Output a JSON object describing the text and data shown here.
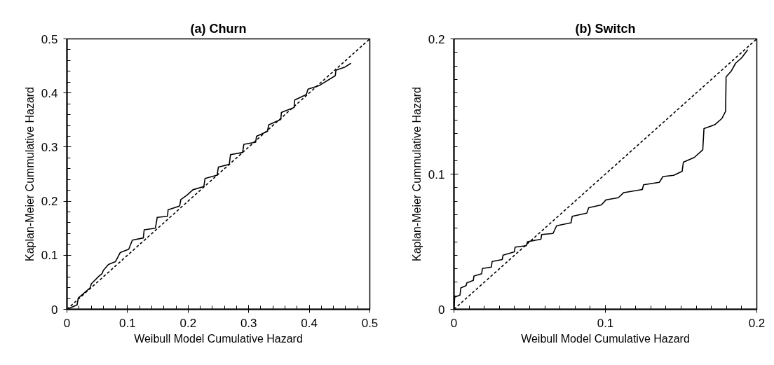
{
  "chart_data": [
    {
      "type": "line",
      "title": "(a) Churn",
      "xlabel": "Weibull Model Cumulative Hazard",
      "ylabel": "Kaplan-Meier Cummulative Hazard",
      "xlim": [
        0,
        0.5
      ],
      "ylim": [
        0,
        0.5
      ],
      "xticks": [
        0,
        {
          "value": 0.02,
          "label": null
        },
        {
          "value": 0.04,
          "label": null
        },
        {
          "value": 0.06,
          "label": null
        },
        {
          "value": 0.08,
          "label": null
        },
        0.1,
        {
          "value": 0.12,
          "label": null
        },
        {
          "value": 0.14,
          "label": null
        },
        {
          "value": 0.16,
          "label": null
        },
        {
          "value": 0.18,
          "label": null
        },
        0.2,
        {
          "value": 0.22,
          "label": null
        },
        {
          "value": 0.24,
          "label": null
        },
        {
          "value": 0.26,
          "label": null
        },
        {
          "value": 0.28,
          "label": null
        },
        0.3,
        {
          "value": 0.32,
          "label": null
        },
        {
          "value": 0.34,
          "label": null
        },
        {
          "value": 0.36,
          "label": null
        },
        {
          "value": 0.38,
          "label": null
        },
        0.4,
        {
          "value": 0.42,
          "label": null
        },
        {
          "value": 0.44,
          "label": null
        },
        {
          "value": 0.46,
          "label": null
        },
        {
          "value": 0.48,
          "label": null
        },
        0.5
      ],
      "yticks": [
        0,
        {
          "value": 0.02,
          "label": null
        },
        {
          "value": 0.04,
          "label": null
        },
        {
          "value": 0.06,
          "label": null
        },
        {
          "value": 0.08,
          "label": null
        },
        0.1,
        {
          "value": 0.12,
          "label": null
        },
        {
          "value": 0.14,
          "label": null
        },
        {
          "value": 0.16,
          "label": null
        },
        {
          "value": 0.18,
          "label": null
        },
        0.2,
        {
          "value": 0.22,
          "label": null
        },
        {
          "value": 0.24,
          "label": null
        },
        {
          "value": 0.26,
          "label": null
        },
        {
          "value": 0.28,
          "label": null
        },
        0.3,
        {
          "value": 0.32,
          "label": null
        },
        {
          "value": 0.34,
          "label": null
        },
        {
          "value": 0.36,
          "label": null
        },
        {
          "value": 0.38,
          "label": null
        },
        0.4,
        {
          "value": 0.42,
          "label": null
        },
        {
          "value": 0.44,
          "label": null
        },
        {
          "value": 0.46,
          "label": null
        },
        {
          "value": 0.48,
          "label": null
        },
        0.5
      ],
      "series": [
        {
          "color": "#000000",
          "line_style": "solid",
          "x": [
            0,
            0.0167,
            0.0187,
            0.0386,
            0.04,
            0.0526,
            0.058,
            0.06,
            0.0685,
            0.08,
            0.088,
            0.102,
            0.108,
            0.126,
            0.1275,
            0.146,
            0.149,
            0.166,
            0.167,
            0.186,
            0.188,
            0.198,
            0.208,
            0.226,
            0.228,
            0.248,
            0.25,
            0.268,
            0.27,
            0.29,
            0.292,
            0.3115,
            0.313,
            0.331,
            0.333,
            0.353,
            0.354,
            0.375,
            0.376,
            0.395,
            0.398,
            0.417,
            0.443,
            0.444,
            0.459,
            0.469
          ],
          "values": [
            0,
            0.008,
            0.021,
            0.04,
            0.047,
            0.061,
            0.066,
            0.072,
            0.083,
            0.088,
            0.105,
            0.111,
            0.128,
            0.132,
            0.147,
            0.15,
            0.17,
            0.172,
            0.184,
            0.191,
            0.203,
            0.211,
            0.221,
            0.227,
            0.242,
            0.248,
            0.263,
            0.268,
            0.286,
            0.29,
            0.305,
            0.309,
            0.32,
            0.329,
            0.341,
            0.351,
            0.364,
            0.373,
            0.387,
            0.397,
            0.407,
            0.414,
            0.432,
            0.442,
            0.448,
            0.455
          ]
        },
        {
          "color": "#000000",
          "line_style": "dashed",
          "x": [
            0,
            0.5
          ],
          "values": [
            0,
            0.5
          ]
        }
      ]
    },
    {
      "type": "line",
      "title": "(b) Switch",
      "xlabel": "Weibull Model Cumulative Hazard",
      "ylabel": "Kaplan-Meier Cummulative Hazard",
      "xlim": [
        0,
        0.2
      ],
      "ylim": [
        0,
        0.2
      ],
      "xticks": [
        0,
        {
          "value": 0.01,
          "label": null
        },
        {
          "value": 0.02,
          "label": null
        },
        {
          "value": 0.03,
          "label": null
        },
        {
          "value": 0.04,
          "label": null
        },
        {
          "value": 0.05,
          "label": null
        },
        {
          "value": 0.06,
          "label": null
        },
        {
          "value": 0.07,
          "label": null
        },
        {
          "value": 0.08,
          "label": null
        },
        {
          "value": 0.09,
          "label": null
        },
        0.1,
        {
          "value": 0.11,
          "label": null
        },
        {
          "value": 0.12,
          "label": null
        },
        {
          "value": 0.13,
          "label": null
        },
        {
          "value": 0.14,
          "label": null
        },
        {
          "value": 0.15,
          "label": null
        },
        {
          "value": 0.16,
          "label": null
        },
        {
          "value": 0.17,
          "label": null
        },
        {
          "value": 0.18,
          "label": null
        },
        {
          "value": 0.19,
          "label": null
        },
        0.2
      ],
      "yticks": [
        0,
        {
          "value": 0.01,
          "label": null
        },
        {
          "value": 0.02,
          "label": null
        },
        {
          "value": 0.03,
          "label": null
        },
        {
          "value": 0.04,
          "label": null
        },
        {
          "value": 0.05,
          "label": null
        },
        {
          "value": 0.06,
          "label": null
        },
        {
          "value": 0.07,
          "label": null
        },
        {
          "value": 0.08,
          "label": null
        },
        {
          "value": 0.09,
          "label": null
        },
        0.1,
        {
          "value": 0.11,
          "label": null
        },
        {
          "value": 0.12,
          "label": null
        },
        {
          "value": 0.13,
          "label": null
        },
        {
          "value": 0.14,
          "label": null
        },
        {
          "value": 0.15,
          "label": null
        },
        {
          "value": 0.16,
          "label": null
        },
        {
          "value": 0.17,
          "label": null
        },
        {
          "value": 0.18,
          "label": null
        },
        {
          "value": 0.19,
          "label": null
        },
        0.2
      ],
      "series": [
        {
          "color": "#000000",
          "line_style": "solid",
          "x": [
            0,
            0.0005,
            0.004,
            0.0045,
            0.008,
            0.0085,
            0.0128,
            0.0132,
            0.0183,
            0.0188,
            0.0247,
            0.0252,
            0.0319,
            0.0324,
            0.0399,
            0.0404,
            0.0478,
            0.0486,
            0.0574,
            0.0579,
            0.0654,
            0.0678,
            0.0773,
            0.0781,
            0.0877,
            0.089,
            0.0973,
            0.1005,
            0.1085,
            0.1121,
            0.1244,
            0.1252,
            0.1356,
            0.138,
            0.1451,
            0.1507,
            0.1515,
            0.1587,
            0.1643,
            0.1651,
            0.1722,
            0.177,
            0.1794,
            0.1797,
            0.183,
            0.186,
            0.19,
            0.194
          ],
          "values": [
            0,
            0.0091,
            0.0105,
            0.0158,
            0.0175,
            0.0196,
            0.0214,
            0.0246,
            0.0263,
            0.0302,
            0.0312,
            0.0354,
            0.0368,
            0.04,
            0.0425,
            0.046,
            0.047,
            0.05,
            0.0518,
            0.0553,
            0.0561,
            0.0618,
            0.064,
            0.0688,
            0.0711,
            0.0751,
            0.0772,
            0.081,
            0.0825,
            0.0863,
            0.0886,
            0.0921,
            0.0939,
            0.0982,
            0.0991,
            0.1021,
            0.1088,
            0.1123,
            0.1179,
            0.1337,
            0.1365,
            0.1412,
            0.1465,
            0.1719,
            0.176,
            0.182,
            0.186,
            0.192
          ]
        },
        {
          "color": "#000000",
          "line_style": "dashed",
          "x": [
            0,
            0.2
          ],
          "values": [
            0,
            0.2
          ]
        }
      ]
    }
  ]
}
